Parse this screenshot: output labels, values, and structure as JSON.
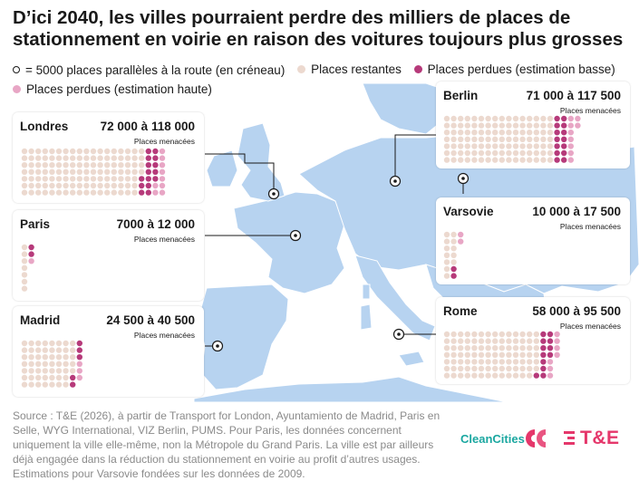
{
  "title": "D’ici 2040, les villes pourraient perdre des milliers de places de stationnement en voirie en raison des voitures toujours plus grosses",
  "colors": {
    "remaining": "#ecd9cf",
    "lost_low": "#b63a7a",
    "lost_high": "#e8a6c5",
    "sea": "#ffffff",
    "land": "#b7d3f0"
  },
  "legend": [
    {
      "label": "= 5000 places parallèles à la route (en créneau)",
      "marker": "outline-circle"
    },
    {
      "label": "Places restantes",
      "marker": "remaining"
    },
    {
      "label": "Places perdues (estimation basse)",
      "marker": "lost_low"
    },
    {
      "label": "Places perdues (estimation haute)",
      "marker": "lost_high"
    }
  ],
  "chart_data": {
    "type": "dot-matrix-map",
    "unit": "= 5000 places parallèles à la route (en créneau)",
    "cities": [
      {
        "name": "Londres",
        "range_label": "72 000 à 118 000",
        "subtitle": "Places menacées",
        "remaining": 123,
        "lost_low": 15,
        "lost_high": 9
      },
      {
        "name": "Paris",
        "range_label": "7000 à 12 000",
        "subtitle": "Places menacées",
        "remaining": 7,
        "lost_low": 2,
        "lost_high": 1
      },
      {
        "name": "Madrid",
        "range_label": "24 500 à 40 500",
        "subtitle": "Places menacées",
        "remaining": 54,
        "lost_low": 5,
        "lost_high": 3
      },
      {
        "name": "Berlin",
        "range_label": "71 000 à 117 500",
        "subtitle": "Places menacées",
        "remaining": 112,
        "lost_low": 14,
        "lost_high": 9
      },
      {
        "name": "Varsovie",
        "range_label": "10 000 à 17 500",
        "subtitle": "Places menacées",
        "remaining": 12,
        "lost_low": 2,
        "lost_high": 2
      },
      {
        "name": "Rome",
        "range_label": "58 000 à 95 500",
        "subtitle": "Places menacées",
        "remaining": 97,
        "lost_low": 12,
        "lost_high": 7
      }
    ]
  },
  "source": "Source : T&E (2026), à partir de Transport for London, Ayuntamiento de Madrid, Paris en Selle, WYG International, VIZ Berlin, PUMS. Pour Paris, les données concernent uniquement la ville elle-même, non la Métropole du Grand Paris. La ville est par ailleurs déjà engagée dans la réduction du stationnement en voirie au profit d’autres usages. Estimations pour Varsovie fondées sur les données de 2009.",
  "brands": {
    "cleancities": "CleanCities",
    "te": "T&E"
  }
}
